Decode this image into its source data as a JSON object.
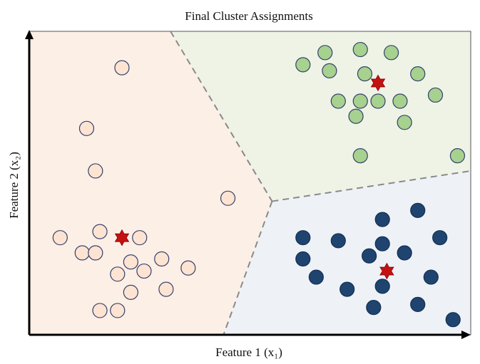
{
  "chart_data": {
    "type": "scatter",
    "title": "Final Cluster Assignments",
    "xlabel": "Feature 1 (x₁)",
    "ylabel": "Feature 2 (x₂)",
    "xlim": [
      0,
      10
    ],
    "ylim": [
      0,
      10
    ],
    "grid": false,
    "legend": "none",
    "regions": [
      {
        "cluster": 1,
        "color": "#fcefe6",
        "polygon": [
          [
            0,
            10
          ],
          [
            3.2,
            10
          ],
          [
            5.5,
            4.4
          ],
          [
            4.4,
            0
          ],
          [
            0,
            0
          ]
        ]
      },
      {
        "cluster": 2,
        "color": "#eef3e6",
        "polygon": [
          [
            3.2,
            10
          ],
          [
            10,
            10
          ],
          [
            10,
            5.4
          ],
          [
            5.5,
            4.4
          ]
        ]
      },
      {
        "cluster": 3,
        "color": "#eef2f7",
        "polygon": [
          [
            5.5,
            4.4
          ],
          [
            10,
            5.4
          ],
          [
            10,
            0
          ],
          [
            4.4,
            0
          ]
        ]
      }
    ],
    "boundaries": [
      [
        [
          3.2,
          10
        ],
        [
          5.5,
          4.4
        ]
      ],
      [
        [
          5.5,
          4.4
        ],
        [
          10,
          5.4
        ]
      ],
      [
        [
          5.5,
          4.4
        ],
        [
          4.4,
          0
        ]
      ]
    ],
    "series": [
      {
        "cluster": 1,
        "fill": "#fde4d2",
        "stroke": "#35406b",
        "x": [
          2.1,
          1.3,
          1.5,
          4.5,
          0.7,
          1.6,
          1.2,
          2.5,
          1.5,
          2.3,
          3.0,
          3.6,
          2.0,
          2.6,
          2.3,
          3.1,
          1.6,
          2.0
        ],
        "y": [
          8.8,
          6.8,
          5.4,
          4.5,
          3.2,
          3.4,
          2.7,
          3.2,
          2.7,
          2.4,
          2.5,
          2.2,
          2.0,
          2.1,
          1.4,
          1.5,
          0.8,
          0.8
        ]
      },
      {
        "cluster": 2,
        "fill": "#a6d18e",
        "stroke": "#35406b",
        "x": [
          6.2,
          6.7,
          7.5,
          8.2,
          6.8,
          7.6,
          8.8,
          9.2,
          7.0,
          7.5,
          7.9,
          8.4,
          7.4,
          8.5,
          7.5,
          9.7
        ],
        "y": [
          8.9,
          9.3,
          9.4,
          9.3,
          8.7,
          8.6,
          8.6,
          7.9,
          7.7,
          7.7,
          7.7,
          7.7,
          7.2,
          7.0,
          5.9,
          5.9
        ]
      },
      {
        "cluster": 3,
        "fill": "#1f4470",
        "stroke": "#14304f",
        "x": [
          8.8,
          8.0,
          6.2,
          7.0,
          8.0,
          9.3,
          7.7,
          8.5,
          6.2,
          6.5,
          9.1,
          7.2,
          8.0,
          7.8,
          8.8,
          9.6
        ],
        "y": [
          4.1,
          3.8,
          3.2,
          3.1,
          3.0,
          3.2,
          2.6,
          2.7,
          2.5,
          1.9,
          1.9,
          1.5,
          1.6,
          0.9,
          1.0,
          0.5
        ]
      }
    ],
    "centroids": [
      {
        "cluster": 1,
        "x": 2.1,
        "y": 3.2,
        "color": "#c41212"
      },
      {
        "cluster": 2,
        "x": 7.9,
        "y": 8.3,
        "color": "#c41212"
      },
      {
        "cluster": 3,
        "x": 8.1,
        "y": 2.1,
        "color": "#c41212"
      }
    ]
  }
}
